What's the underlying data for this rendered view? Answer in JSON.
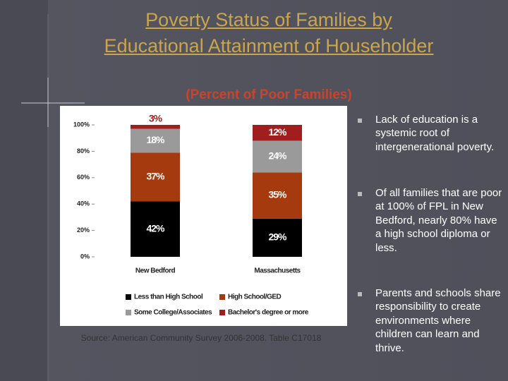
{
  "chart_data": {
    "type": "stacked-bar",
    "categories": [
      "New Bedford",
      "Massachusetts"
    ],
    "series": [
      {
        "name": "Less than High School",
        "color": "#000000",
        "values": [
          42,
          29
        ],
        "value_labels": [
          "42%",
          "29%"
        ]
      },
      {
        "name": "High School/GED",
        "color": "#a53a0e",
        "values": [
          37,
          35
        ],
        "value_labels": [
          "37%",
          "35%"
        ]
      },
      {
        "name": "Some College/Associates",
        "color": "#9a9a9a",
        "values": [
          18,
          24
        ],
        "value_labels": [
          "18%",
          "24%"
        ]
      },
      {
        "name": "Bachelor's degree or more",
        "color": "#a01e1e",
        "values": [
          3,
          12
        ],
        "value_labels": [
          "3%",
          "12%"
        ]
      }
    ],
    "ylim": [
      0,
      100
    ],
    "yticks": [
      {
        "value": 0,
        "label": "0%"
      },
      {
        "value": 20,
        "label": "20%"
      },
      {
        "value": 40,
        "label": "40%"
      },
      {
        "value": 60,
        "label": "60%"
      },
      {
        "value": 80,
        "label": "80%"
      },
      {
        "value": 100,
        "label": "100%"
      }
    ],
    "grid": false
  },
  "header": {
    "title": "Poverty Status of Families by Educational Attainment of Householder",
    "subtitle": "(Percent of Poor Families)"
  },
  "source": "Source:  American Community Survey 2006-2008.  Table C17018",
  "bullets": [
    "Lack of education is a systemic root of intergenerational poverty.",
    "Of all families that are poor at 100% of FPL in New Bedford, nearly 80% have a high school diploma or less.",
    "Parents and schools share responsibility to create environments where children can learn and thrive."
  ]
}
